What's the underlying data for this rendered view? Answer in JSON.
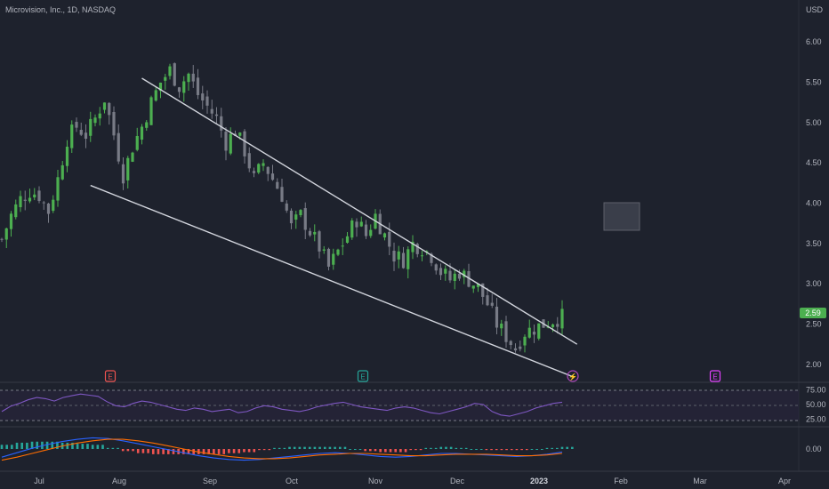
{
  "title": "Microvision, Inc., 1D, NASDAQ",
  "currency": "USD",
  "last_price": "2.59",
  "colors": {
    "background": "#1e222d",
    "up": "#4caf50",
    "down": "#787b86",
    "trendline": "#d1d4dc",
    "rsi_line": "#7e57c2",
    "rsi_band": "#2a2440",
    "macd": "#2962ff",
    "signal": "#ff6d00",
    "hist_pos": "#26a69a",
    "hist_neg": "#ef5350",
    "price_label_bg": "#4caf50"
  },
  "chart_data": [
    {
      "type": "candlestick",
      "panel": "price",
      "x_ticks": [
        "Jul",
        "Aug",
        "Sep",
        "Oct",
        "Nov",
        "Dec",
        "2023",
        "Feb",
        "Mar",
        "Apr"
      ],
      "y_ticks": [
        "6.00",
        "5.50",
        "5.00",
        "4.50",
        "4.00",
        "3.50",
        "3.00",
        "2.50",
        "2.00"
      ],
      "ylim": [
        1.8,
        6.3
      ],
      "close_points": [
        [
          0,
          3.55
        ],
        [
          2,
          3.85
        ],
        [
          4,
          4.05
        ],
        [
          6,
          4.15
        ],
        [
          8,
          4.1
        ],
        [
          10,
          3.9
        ],
        [
          12,
          4.3
        ],
        [
          14,
          4.8
        ],
        [
          16,
          4.95
        ],
        [
          18,
          4.85
        ],
        [
          20,
          5.05
        ],
        [
          22,
          5.3
        ],
        [
          24,
          4.85
        ],
        [
          26,
          4.35
        ],
        [
          28,
          4.7
        ],
        [
          30,
          4.95
        ],
        [
          32,
          5.25
        ],
        [
          34,
          5.5
        ],
        [
          36,
          5.65
        ],
        [
          38,
          5.45
        ],
        [
          40,
          5.6
        ],
        [
          42,
          5.35
        ],
        [
          44,
          5.2
        ],
        [
          46,
          5.05
        ],
        [
          48,
          4.75
        ],
        [
          50,
          4.9
        ],
        [
          52,
          4.65
        ],
        [
          54,
          4.3
        ],
        [
          56,
          4.5
        ],
        [
          58,
          4.3
        ],
        [
          60,
          4.1
        ],
        [
          62,
          3.7
        ],
        [
          64,
          3.85
        ],
        [
          66,
          3.65
        ],
        [
          68,
          3.45
        ],
        [
          70,
          3.2
        ],
        [
          72,
          3.4
        ],
        [
          74,
          3.6
        ],
        [
          76,
          3.8
        ],
        [
          78,
          3.6
        ],
        [
          80,
          3.85
        ],
        [
          82,
          3.6
        ],
        [
          84,
          3.35
        ],
        [
          86,
          3.3
        ],
        [
          88,
          3.5
        ],
        [
          90,
          3.45
        ],
        [
          92,
          3.35
        ],
        [
          94,
          3.15
        ],
        [
          96,
          3.05
        ],
        [
          98,
          3.15
        ],
        [
          100,
          3.05
        ],
        [
          102,
          2.95
        ],
        [
          104,
          2.75
        ],
        [
          106,
          2.5
        ],
        [
          108,
          2.35
        ],
        [
          110,
          2.2
        ],
        [
          112,
          2.4
        ],
        [
          114,
          2.45
        ],
        [
          116,
          2.5
        ],
        [
          118,
          2.55
        ],
        [
          120,
          2.59
        ]
      ],
      "trendlines": [
        {
          "name": "upper",
          "from": [
            30,
            5.55
          ],
          "to": [
            119,
            2.25
          ]
        },
        {
          "name": "lower",
          "from": [
            19,
            4.22
          ],
          "to": [
            118,
            1.85
          ]
        }
      ],
      "event_markers": [
        "E",
        "E",
        "⚡",
        "E"
      ]
    },
    {
      "type": "line",
      "panel": "RSI",
      "y_ticks": [
        "75.00",
        "50.00",
        "25.00"
      ],
      "ylim": [
        15,
        85
      ],
      "bands": [
        70,
        30
      ],
      "values": [
        38,
        47,
        52,
        58,
        62,
        60,
        56,
        62,
        65,
        68,
        66,
        64,
        55,
        48,
        46,
        52,
        56,
        54,
        50,
        46,
        42,
        40,
        44,
        42,
        38,
        40,
        42,
        36,
        38,
        44,
        48,
        46,
        42,
        40,
        38,
        41,
        46,
        49,
        52,
        54,
        50,
        46,
        44,
        42,
        40,
        44,
        46,
        44,
        40,
        36,
        34,
        38,
        42,
        46,
        52,
        50,
        38,
        32,
        30,
        34,
        38,
        44,
        48,
        52,
        54
      ]
    },
    {
      "type": "line",
      "panel": "MACD",
      "y_ticks": [
        "0.00"
      ],
      "ylim": [
        -0.5,
        0.5
      ],
      "series": [
        {
          "values": [
            -0.22,
            -0.1,
            0.02,
            0.12,
            0.2,
            0.26,
            0.3,
            0.28,
            0.22,
            0.14,
            0.06,
            -0.02,
            -0.1,
            -0.18,
            -0.24,
            -0.28,
            -0.3,
            -0.28,
            -0.24,
            -0.2,
            -0.16,
            -0.12,
            -0.1,
            -0.12,
            -0.16,
            -0.2,
            -0.22,
            -0.2,
            -0.16,
            -0.12,
            -0.12,
            -0.14,
            -0.16,
            -0.18,
            -0.2,
            -0.18,
            -0.14,
            -0.08
          ]
        },
        {
          "values": [
            -0.3,
            -0.22,
            -0.12,
            -0.02,
            0.08,
            0.16,
            0.22,
            0.26,
            0.26,
            0.22,
            0.16,
            0.08,
            0.0,
            -0.08,
            -0.14,
            -0.2,
            -0.24,
            -0.26,
            -0.26,
            -0.24,
            -0.2,
            -0.16,
            -0.14,
            -0.12,
            -0.12,
            -0.14,
            -0.16,
            -0.18,
            -0.18,
            -0.16,
            -0.14,
            -0.14,
            -0.14,
            -0.16,
            -0.18,
            -0.18,
            -0.16,
            -0.12
          ]
        }
      ]
    }
  ]
}
